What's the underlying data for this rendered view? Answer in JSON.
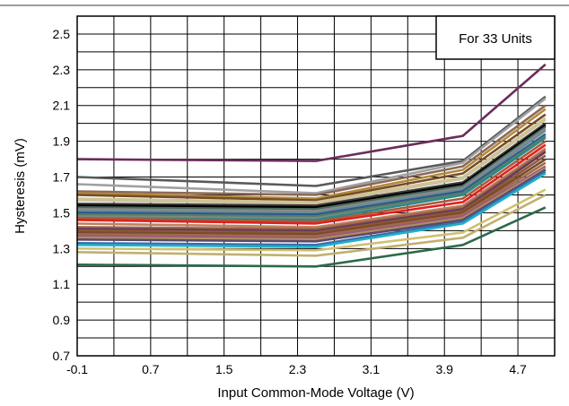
{
  "chart_data": {
    "type": "line",
    "title": "",
    "xlabel": "Input Common-Mode Voltage (V)",
    "ylabel": "Hysteresis (mV)",
    "annotation": "For 33 Units",
    "x": [
      -0.1,
      2.5,
      4.1,
      5.0
    ],
    "xlim": [
      -0.1,
      5.1
    ],
    "ylim": [
      0.7,
      2.6
    ],
    "xticks": [
      "-0.1",
      "0.7",
      "1.5",
      "2.3",
      "3.1",
      "3.9",
      "4.7"
    ],
    "yticks": [
      "0.7",
      "0.9",
      "1.1",
      "1.3",
      "1.5",
      "1.7",
      "1.9",
      "2.1",
      "2.3",
      "2.5"
    ],
    "grid": true,
    "series": [
      {
        "color": "#6b2c5a",
        "values": [
          1.8,
          1.79,
          1.93,
          2.33
        ]
      },
      {
        "color": "#5a5a5a",
        "values": [
          1.7,
          1.65,
          1.79,
          2.15
        ]
      },
      {
        "color": "#a0a0a0",
        "values": [
          1.66,
          1.61,
          1.78,
          2.14
        ]
      },
      {
        "color": "#8c6a5a",
        "values": [
          1.62,
          1.6,
          1.76,
          2.1
        ]
      },
      {
        "color": "#b08a3a",
        "values": [
          1.61,
          1.58,
          1.74,
          2.08
        ]
      },
      {
        "color": "#7a4a2a",
        "values": [
          1.6,
          1.57,
          1.72,
          2.05
        ]
      },
      {
        "color": "#c8c890",
        "values": [
          1.58,
          1.56,
          1.7,
          2.03
        ]
      },
      {
        "color": "#d0c0a0",
        "values": [
          1.57,
          1.55,
          1.69,
          2.02
        ]
      },
      {
        "color": "#3a3a3a",
        "values": [
          1.55,
          1.54,
          1.67,
          2.0
        ]
      },
      {
        "color": "#000000",
        "values": [
          1.54,
          1.53,
          1.66,
          1.99
        ]
      },
      {
        "color": "#4a6a5a",
        "values": [
          1.53,
          1.52,
          1.65,
          1.98
        ]
      },
      {
        "color": "#8a8a8a",
        "values": [
          1.52,
          1.51,
          1.64,
          1.97
        ]
      },
      {
        "color": "#6a8a9a",
        "values": [
          1.51,
          1.5,
          1.63,
          1.96
        ]
      },
      {
        "color": "#2a5a8a",
        "values": [
          1.5,
          1.49,
          1.62,
          1.94
        ]
      },
      {
        "color": "#5a7a6a",
        "values": [
          1.49,
          1.48,
          1.61,
          1.93
        ]
      },
      {
        "color": "#7a8a7a",
        "values": [
          1.48,
          1.47,
          1.6,
          1.92
        ]
      },
      {
        "color": "#2a8a8a",
        "values": [
          1.47,
          1.46,
          1.6,
          1.92
        ]
      },
      {
        "color": "#aa5a3a",
        "values": [
          1.47,
          1.45,
          1.58,
          1.9
        ]
      },
      {
        "color": "#e02020",
        "values": [
          1.46,
          1.44,
          1.56,
          1.88
        ]
      },
      {
        "color": "#c08060",
        "values": [
          1.44,
          1.42,
          1.54,
          1.86
        ]
      },
      {
        "color": "#9a6a4a",
        "values": [
          1.42,
          1.41,
          1.53,
          1.85
        ]
      },
      {
        "color": "#6a3a5a",
        "values": [
          1.41,
          1.4,
          1.52,
          1.84
        ]
      },
      {
        "color": "#8a5a3a",
        "values": [
          1.4,
          1.39,
          1.51,
          1.82
        ]
      },
      {
        "color": "#7a4a2a",
        "values": [
          1.39,
          1.38,
          1.5,
          1.8
        ]
      },
      {
        "color": "#a06a4a",
        "values": [
          1.38,
          1.37,
          1.49,
          1.78
        ]
      },
      {
        "color": "#9a5a7a",
        "values": [
          1.37,
          1.36,
          1.48,
          1.76
        ]
      },
      {
        "color": "#b09060",
        "values": [
          1.36,
          1.35,
          1.47,
          1.75
        ]
      },
      {
        "color": "#5a4a6a",
        "values": [
          1.35,
          1.34,
          1.46,
          1.74
        ]
      },
      {
        "color": "#3a6aaa",
        "values": [
          1.33,
          1.32,
          1.45,
          1.73
        ]
      },
      {
        "color": "#20b0c8",
        "values": [
          1.32,
          1.31,
          1.44,
          1.72
        ]
      },
      {
        "color": "#d0c070",
        "values": [
          1.3,
          1.29,
          1.39,
          1.63
        ]
      },
      {
        "color": "#c0b070",
        "values": [
          1.28,
          1.26,
          1.36,
          1.6
        ]
      },
      {
        "color": "#2a6a4a",
        "values": [
          1.21,
          1.2,
          1.32,
          1.53
        ]
      }
    ]
  }
}
